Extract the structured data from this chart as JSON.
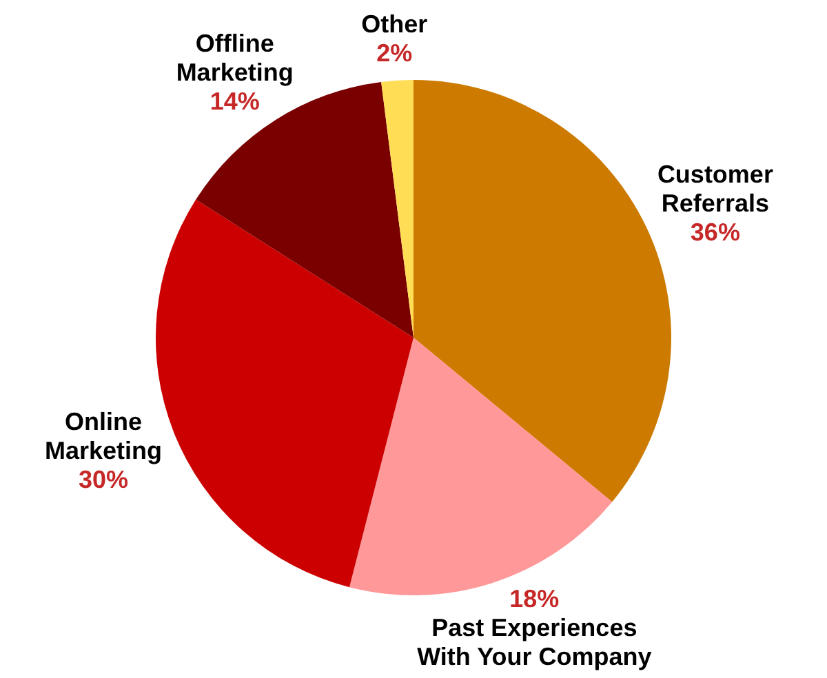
{
  "chart_data": {
    "type": "pie",
    "categories": [
      "Customer Referrals",
      "Past Experiences With Your Company",
      "Online Marketing",
      "Offline Marketing",
      "Other"
    ],
    "values": [
      36,
      18,
      30,
      14,
      2
    ],
    "value_labels": [
      "36%",
      "18%",
      "30%",
      "14%",
      "2%"
    ],
    "colors": [
      "#cc7a00",
      "#ff9999",
      "#cc0000",
      "#7a0000",
      "#ffdd55"
    ]
  }
}
